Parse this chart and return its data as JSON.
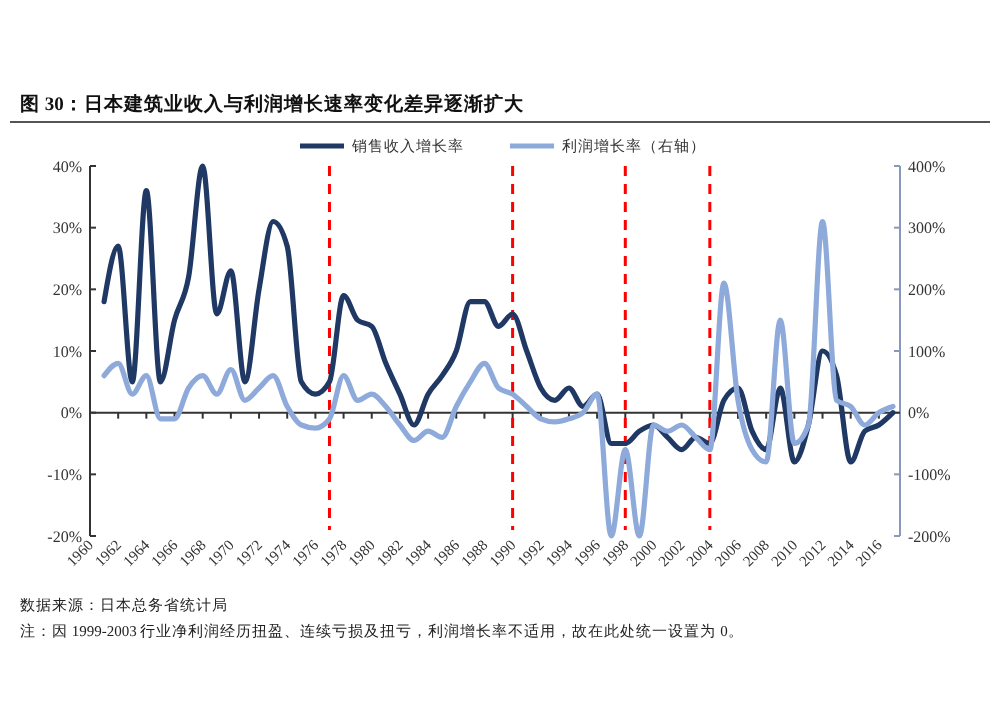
{
  "chart_data": {
    "type": "line",
    "title": "图 30：日本建筑业收入与利润增长速率变化差异逐渐扩大",
    "x": [
      1961,
      1962,
      1963,
      1964,
      1965,
      1966,
      1967,
      1968,
      1969,
      1970,
      1971,
      1972,
      1973,
      1974,
      1975,
      1976,
      1977,
      1978,
      1979,
      1980,
      1981,
      1982,
      1983,
      1984,
      1985,
      1986,
      1987,
      1988,
      1989,
      1990,
      1991,
      1992,
      1993,
      1994,
      1995,
      1996,
      1997,
      1998,
      1999,
      2000,
      2001,
      2002,
      2003,
      2004,
      2005,
      2006,
      2007,
      2008,
      2009,
      2010,
      2011,
      2012,
      2013,
      2014,
      2015,
      2016,
      2017
    ],
    "series": [
      {
        "name": "销售收入增长率",
        "color": "#1f3864",
        "values": [
          18,
          27,
          5,
          36,
          5,
          15,
          22,
          40,
          16,
          23,
          5,
          20,
          31,
          27,
          5,
          3,
          5,
          19,
          15,
          14,
          8,
          3,
          -2,
          3,
          6,
          10,
          18,
          18,
          14,
          16,
          10,
          4,
          2,
          4,
          1,
          3,
          -5,
          -5,
          -3,
          -2,
          -4,
          -6,
          -4,
          -5,
          2,
          4,
          -3,
          -6,
          4,
          -8,
          -2,
          10,
          6,
          -8,
          -3,
          -2,
          0
        ]
      },
      {
        "name": "利润增长率（右轴）",
        "color": "#8eaadb",
        "axis": "y2",
        "values": [
          60,
          80,
          30,
          60,
          -10,
          -10,
          40,
          60,
          30,
          70,
          20,
          40,
          60,
          10,
          -20,
          -25,
          -10,
          60,
          20,
          30,
          10,
          -20,
          -45,
          -30,
          -40,
          10,
          50,
          80,
          40,
          30,
          10,
          -10,
          -15,
          -10,
          0,
          30,
          -200,
          -60,
          -200,
          -20,
          -30,
          -20,
          -40,
          -60,
          210,
          20,
          -60,
          -80,
          150,
          -50,
          -20,
          310,
          20,
          10,
          -20,
          0,
          10
        ]
      }
    ],
    "xlim": [
      1960,
      2017.5
    ],
    "xticks": [
      1960,
      1962,
      1964,
      1966,
      1968,
      1970,
      1972,
      1974,
      1976,
      1978,
      1980,
      1982,
      1984,
      1986,
      1988,
      1990,
      1992,
      1994,
      1996,
      1998,
      2000,
      2002,
      2004,
      2006,
      2008,
      2010,
      2012,
      2014,
      2016
    ],
    "ylim": [
      -20,
      40
    ],
    "yticks": [
      {
        "value": -20,
        "label": "-20%"
      },
      {
        "value": -10,
        "label": "-10%"
      },
      {
        "value": 0,
        "label": "0%"
      },
      {
        "value": 10,
        "label": "10%"
      },
      {
        "value": 20,
        "label": "20%"
      },
      {
        "value": 30,
        "label": "30%"
      },
      {
        "value": 40,
        "label": "40%"
      }
    ],
    "y2lim": [
      -200,
      400
    ],
    "y2ticks": [
      {
        "value": -200,
        "label": "-200%"
      },
      {
        "value": -100,
        "label": "-100%"
      },
      {
        "value": 0,
        "label": "0%"
      },
      {
        "value": 100,
        "label": "100%"
      },
      {
        "value": 200,
        "label": "200%"
      },
      {
        "value": 300,
        "label": "300%"
      },
      {
        "value": 400,
        "label": "400%"
      }
    ],
    "ref_lines": [
      {
        "axis": "x",
        "value": 1977,
        "color": "#ff0000",
        "line_style": "dashed"
      },
      {
        "axis": "x",
        "value": 1990,
        "color": "#ff0000",
        "line_style": "dashed"
      },
      {
        "axis": "x",
        "value": 1998,
        "color": "#ff0000",
        "line_style": "dashed"
      },
      {
        "axis": "x",
        "value": 2004,
        "color": "#ff0000",
        "line_style": "dashed"
      }
    ],
    "legend": "top",
    "grid": false,
    "annotations": [
      "数据来源：日本总务省统计局",
      "注：因 1999-2003 行业净利润经历扭盈、连续亏损及扭亏，利润增长率不适用，故在此处统一设置为 0。"
    ]
  }
}
